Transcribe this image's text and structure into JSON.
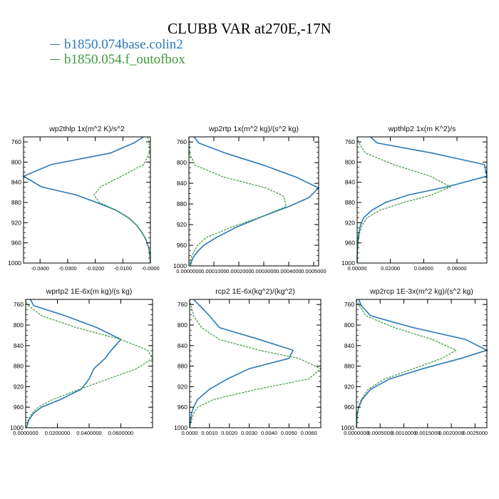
{
  "title": "CLUBB VAR at270E,-17N",
  "legend": [
    {
      "label": "b1850.074base.colin2",
      "color": "#2a78b8",
      "dash": "solid"
    },
    {
      "label": "b1850.054.f_outofbox",
      "color": "#3a9a3a",
      "dash": "dashed"
    }
  ],
  "chart_data": [
    {
      "type": "line",
      "title": "wp2thlp   1x(m^2 K)/s^2",
      "ylim": [
        1000,
        750
      ],
      "yticks": [
        "760",
        "800",
        "840",
        "880",
        "920",
        "960",
        "1000"
      ],
      "xlim": [
        -0.046,
        0.0
      ],
      "xticks": [
        {
          "v": -0.04,
          "label": "-0.0400"
        },
        {
          "v": -0.03,
          "label": "-0.0300"
        },
        {
          "v": -0.02,
          "label": "-0.0200"
        },
        {
          "v": -0.01,
          "label": "-0.0100"
        },
        {
          "v": 0.0,
          "label": "-0.0000"
        }
      ],
      "series": [
        {
          "levels": [
            750,
            762,
            782,
            805,
            828,
            849,
            865,
            880,
            895,
            910,
            925,
            940,
            955,
            970,
            985,
            1000
          ],
          "values": [
            -0.0025,
            -0.006,
            -0.0145,
            -0.036,
            -0.046,
            -0.0395,
            -0.027,
            -0.0195,
            -0.0125,
            -0.008,
            -0.005,
            -0.003,
            -0.0015,
            -0.0006,
            -0.0002,
            0.0
          ]
        },
        {
          "levels": [
            750,
            762,
            782,
            805,
            828,
            849,
            865,
            880,
            895,
            910,
            925,
            940,
            955,
            970,
            985,
            1000
          ],
          "values": [
            -0.001,
            -0.0005,
            -0.0003,
            -0.0025,
            -0.0105,
            -0.018,
            -0.0205,
            -0.0185,
            -0.0125,
            -0.008,
            -0.005,
            -0.003,
            -0.0015,
            -0.0006,
            -0.0002,
            0.0
          ]
        }
      ]
    },
    {
      "type": "line",
      "title": "wp2rtp   1x(m^2 kg)/(s^2 kg)",
      "ylim": [
        1000,
        750
      ],
      "yticks": [
        "760",
        "800",
        "840",
        "880",
        "920",
        "960",
        "1000"
      ],
      "xlim": [
        0.0,
        0.00052
      ],
      "xticks": [
        {
          "v": 0.0,
          "label": "0.0000000"
        },
        {
          "v": 0.0001,
          "label": "0.0001000"
        },
        {
          "v": 0.0002,
          "label": "0.0002000"
        },
        {
          "v": 0.0003,
          "label": "0.0003000"
        },
        {
          "v": 0.0004,
          "label": "0.0004000"
        },
        {
          "v": 0.0005,
          "label": "0.0005000"
        }
      ],
      "series": [
        {
          "levels": [
            750,
            762,
            782,
            805,
            828,
            849,
            868,
            885,
            905,
            925,
            945,
            960,
            972,
            985,
            1000
          ],
          "values": [
            2e-05,
            4e-05,
            0.00015,
            0.0003,
            0.00043,
            0.00052,
            0.00048,
            0.0004,
            0.00029,
            0.00019,
            0.00011,
            6e-05,
            3.5e-05,
            1.5e-05,
            5e-06
          ]
        },
        {
          "levels": [
            750,
            760,
            782,
            805,
            828,
            849,
            865,
            885,
            905,
            925,
            945,
            960,
            972,
            985,
            1000
          ],
          "values": [
            0.0,
            1.5e-06,
            2e-06,
            2.5e-05,
            0.00014,
            0.00031,
            0.00038,
            0.00039,
            0.00029,
            0.00017,
            7e-05,
            3.5e-05,
            2e-05,
            8e-06,
            3e-06
          ]
        }
      ]
    },
    {
      "type": "line",
      "title": "wpthlp2   1x(m K^2)/s",
      "ylim": [
        1000,
        750
      ],
      "yticks": [
        "760",
        "800",
        "840",
        "880",
        "920",
        "960",
        "1000"
      ],
      "xlim": [
        0.0,
        0.078
      ],
      "xticks": [
        {
          "v": 0.0,
          "label": "0.00000"
        },
        {
          "v": 0.02,
          "label": "0.02000"
        },
        {
          "v": 0.04,
          "label": "0.04000"
        },
        {
          "v": 0.06,
          "label": "0.06000"
        }
      ],
      "series": [
        {
          "levels": [
            750,
            762,
            782,
            805,
            828,
            849,
            865,
            880,
            895,
            910,
            925,
            940,
            955,
            970,
            985,
            1000
          ],
          "values": [
            0.008,
            0.012,
            0.045,
            0.0765,
            0.078,
            0.054,
            0.031,
            0.017,
            0.009,
            0.004,
            0.002,
            0.001,
            0.0005,
            0.0002,
            0.0001,
            0.0
          ]
        },
        {
          "levels": [
            750,
            762,
            782,
            805,
            828,
            849,
            865,
            880,
            895,
            910,
            925,
            940,
            955,
            970,
            985,
            1000
          ],
          "values": [
            0.0,
            0.001,
            0.005,
            0.022,
            0.044,
            0.056,
            0.045,
            0.028,
            0.014,
            0.006,
            0.003,
            0.0015,
            0.0008,
            0.0003,
            0.0001,
            0.0
          ]
        }
      ]
    },
    {
      "type": "line",
      "title": "wprtp2   1E-6x(m kg)/(s kg)",
      "ylim": [
        1000,
        750
      ],
      "yticks": [
        "760",
        "800",
        "840",
        "880",
        "920",
        "960",
        "1000"
      ],
      "xlim": [
        0.0,
        0.08
      ],
      "xticks": [
        {
          "v": 0.0,
          "label": "0.0000000"
        },
        {
          "v": 0.02,
          "label": "0.0200000"
        },
        {
          "v": 0.04,
          "label": "0.0400000"
        },
        {
          "v": 0.06,
          "label": "0.0600000"
        }
      ],
      "series": [
        {
          "levels": [
            750,
            762,
            782,
            805,
            828,
            849,
            865,
            885,
            905,
            925,
            945,
            960,
            972,
            985,
            1000
          ],
          "values": [
            0.003,
            0.005,
            0.025,
            0.045,
            0.06,
            0.054,
            0.05,
            0.043,
            0.04,
            0.035,
            0.022,
            0.01,
            0.005,
            0.002,
            0.0005
          ]
        },
        {
          "levels": [
            750,
            760,
            782,
            805,
            828,
            849,
            865,
            885,
            905,
            925,
            945,
            960,
            972,
            985,
            1000
          ],
          "values": [
            0.0,
            0.001,
            0.01,
            0.032,
            0.06,
            0.077,
            0.08,
            0.07,
            0.052,
            0.034,
            0.017,
            0.008,
            0.004,
            0.0015,
            0.0005
          ]
        }
      ]
    },
    {
      "type": "line",
      "title": "rcp2   1E-6x(kg^2)/(kg^2)",
      "ylim": [
        1000,
        750
      ],
      "yticks": [
        "760",
        "800",
        "840",
        "880",
        "920",
        "960",
        "1000"
      ],
      "xlim": [
        0.0,
        0.0066
      ],
      "xticks": [
        {
          "v": 0.0,
          "label": "0.0000"
        },
        {
          "v": 0.001,
          "label": "0.0010"
        },
        {
          "v": 0.002,
          "label": "0.0020"
        },
        {
          "v": 0.003,
          "label": "0.0030"
        },
        {
          "v": 0.004,
          "label": "0.0040"
        },
        {
          "v": 0.005,
          "label": "0.0050"
        },
        {
          "v": 0.006,
          "label": "0.0060"
        }
      ],
      "series": [
        {
          "levels": [
            750,
            762,
            782,
            805,
            828,
            849,
            865,
            885,
            905,
            925,
            945,
            960,
            972,
            985,
            1000
          ],
          "values": [
            0.0002,
            0.0005,
            0.001,
            0.0015,
            0.0035,
            0.0052,
            0.005,
            0.003,
            0.0019,
            0.001,
            0.0004,
            0.0002,
            0.0001,
            5e-05,
            0.0
          ]
        },
        {
          "levels": [
            750,
            760,
            782,
            805,
            828,
            849,
            865,
            885,
            905,
            925,
            945,
            960,
            972,
            985,
            1000
          ],
          "values": [
            0.0,
            5e-05,
            0.0002,
            0.0006,
            0.0015,
            0.0035,
            0.0055,
            0.0066,
            0.006,
            0.0034,
            0.0012,
            0.0004,
            0.0002,
            0.0001,
            0.0
          ]
        }
      ]
    },
    {
      "type": "line",
      "title": "wp2rcp   1E-3x(m^2 kg)/(s^2 kg)",
      "ylim": [
        1000,
        750
      ],
      "yticks": [
        "760",
        "800",
        "840",
        "880",
        "920",
        "960",
        "1000"
      ],
      "xlim": [
        0.0,
        0.00275
      ],
      "xticks": [
        {
          "v": 0.0,
          "label": "0.0000000"
        },
        {
          "v": 0.0005,
          "label": "0.0005000"
        },
        {
          "v": 0.001,
          "label": "0.0010000"
        },
        {
          "v": 0.0015,
          "label": "0.0015000"
        },
        {
          "v": 0.002,
          "label": "0.0020000"
        },
        {
          "v": 0.0025,
          "label": "0.0025000"
        }
      ],
      "series": [
        {
          "levels": [
            750,
            762,
            782,
            805,
            828,
            849,
            865,
            885,
            905,
            925,
            945,
            960,
            972,
            985,
            1000
          ],
          "values": [
            5e-05,
            0.0001,
            0.0003,
            0.0012,
            0.0023,
            0.00275,
            0.0022,
            0.0014,
            0.0007,
            0.0003,
            0.00012,
            5e-05,
            2e-05,
            1e-05,
            0.0
          ]
        },
        {
          "levels": [
            750,
            760,
            782,
            805,
            828,
            849,
            865,
            885,
            905,
            925,
            945,
            960,
            972,
            985,
            1000
          ],
          "values": [
            0.0,
            5e-05,
            0.0002,
            0.0008,
            0.0016,
            0.0021,
            0.0018,
            0.0012,
            0.0006,
            0.00025,
            0.0001,
            4e-05,
            2e-05,
            1e-05,
            0.0
          ]
        }
      ]
    }
  ]
}
